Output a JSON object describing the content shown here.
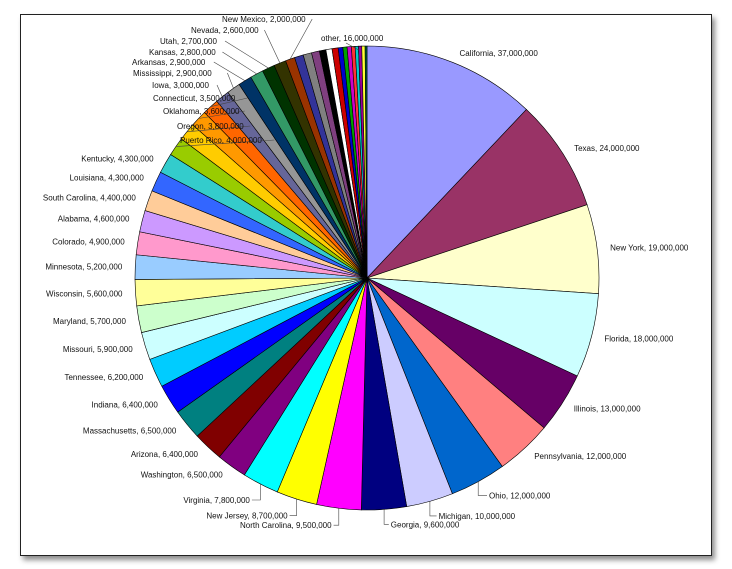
{
  "chart_data": {
    "type": "pie",
    "title": "",
    "start_angle_deg": 0,
    "direction": "clockwise",
    "slices": [
      {
        "label": "California, 37,000,000",
        "name": "California",
        "value": 37000000,
        "color": "#9999ff"
      },
      {
        "label": "Texas, 24,000,000",
        "name": "Texas",
        "value": 24000000,
        "color": "#993366"
      },
      {
        "label": "New York, 19,000,000",
        "name": "New York",
        "value": 19000000,
        "color": "#ffffcc"
      },
      {
        "label": "Florida, 18,000,000",
        "name": "Florida",
        "value": 18000000,
        "color": "#ccffff"
      },
      {
        "label": "Illinois, 13,000,000",
        "name": "Illinois",
        "value": 13000000,
        "color": "#660066"
      },
      {
        "label": "Pennsylvania, 12,000,000",
        "name": "Pennsylvania",
        "value": 12000000,
        "color": "#ff8080"
      },
      {
        "label": "Ohio, 12,000,000",
        "name": "Ohio",
        "value": 12000000,
        "color": "#0066cc"
      },
      {
        "label": "Michigan, 10,000,000",
        "name": "Michigan",
        "value": 10000000,
        "color": "#ccccff"
      },
      {
        "label": "Georgia, 9,600,000",
        "name": "Georgia",
        "value": 9600000,
        "color": "#000080"
      },
      {
        "label": "North Carolina, 9,500,000",
        "name": "North Carolina",
        "value": 9500000,
        "color": "#ff00ff"
      },
      {
        "label": "New Jersey, 8,700,000",
        "name": "New Jersey",
        "value": 8700000,
        "color": "#ffff00"
      },
      {
        "label": "Virginia, 7,800,000",
        "name": "Virginia",
        "value": 7800000,
        "color": "#00ffff"
      },
      {
        "label": "Washington, 6,500,000",
        "name": "Washington",
        "value": 6500000,
        "color": "#800080"
      },
      {
        "label": "Arizona, 6,400,000",
        "name": "Arizona",
        "value": 6400000,
        "color": "#800000"
      },
      {
        "label": "Massachusetts, 6,500,000",
        "name": "Massachusetts",
        "value": 6500000,
        "color": "#008080"
      },
      {
        "label": "Indiana, 6,400,000",
        "name": "Indiana",
        "value": 6400000,
        "color": "#0000ff"
      },
      {
        "label": "Tennessee, 6,200,000",
        "name": "Tennessee",
        "value": 6200000,
        "color": "#00ccff"
      },
      {
        "label": "Missouri, 5,900,000",
        "name": "Missouri",
        "value": 5900000,
        "color": "#ccffff"
      },
      {
        "label": "Maryland, 5,700,000",
        "name": "Maryland",
        "value": 5700000,
        "color": "#ccffcc"
      },
      {
        "label": "Wisconsin, 5,600,000",
        "name": "Wisconsin",
        "value": 5600000,
        "color": "#ffff99"
      },
      {
        "label": "Minnesota, 5,200,000",
        "name": "Minnesota",
        "value": 5200000,
        "color": "#99ccff"
      },
      {
        "label": "Colorado, 4,900,000",
        "name": "Colorado",
        "value": 4900000,
        "color": "#ff99cc"
      },
      {
        "label": "Alabama, 4,600,000",
        "name": "Alabama",
        "value": 4600000,
        "color": "#cc99ff"
      },
      {
        "label": "South Carolina, 4,400,000",
        "name": "South Carolina",
        "value": 4400000,
        "color": "#ffcc99"
      },
      {
        "label": "Louisiana, 4,300,000",
        "name": "Louisiana",
        "value": 4300000,
        "color": "#3366ff"
      },
      {
        "label": "Kentucky, 4,300,000",
        "name": "Kentucky",
        "value": 4300000,
        "color": "#33cccc"
      },
      {
        "label": "Puerto Rico, 4,000,000",
        "name": "Puerto Rico",
        "value": 4000000,
        "color": "#99cc00"
      },
      {
        "label": "Oregon, 3,800,000",
        "name": "Oregon",
        "value": 3800000,
        "color": "#ffcc00"
      },
      {
        "label": "Oklahoma, 3,600,000",
        "name": "Oklahoma",
        "value": 3600000,
        "color": "#ff9900"
      },
      {
        "label": "Connecticut, 3,500,000",
        "name": "Connecticut",
        "value": 3500000,
        "color": "#ff6600"
      },
      {
        "label": "Iowa, 3,000,000",
        "name": "Iowa",
        "value": 3000000,
        "color": "#666699"
      },
      {
        "label": "Mississippi, 2,900,000",
        "name": "Mississippi",
        "value": 2900000,
        "color": "#969696"
      },
      {
        "label": "Arkansas, 2,900,000",
        "name": "Arkansas",
        "value": 2900000,
        "color": "#003366"
      },
      {
        "label": "Kansas, 2,800,000",
        "name": "Kansas",
        "value": 2800000,
        "color": "#339966"
      },
      {
        "label": "Utah, 2,700,000",
        "name": "Utah",
        "value": 2700000,
        "color": "#003300"
      },
      {
        "label": "Nevada, 2,600,000",
        "name": "Nevada",
        "value": 2600000,
        "color": "#333300"
      },
      {
        "label": "New Mexico, 2,000,000",
        "name": "New Mexico",
        "value": 2000000,
        "color": "#993300"
      },
      {
        "label": "",
        "name": "",
        "value": 1900000,
        "color": "#333399"
      },
      {
        "label": "",
        "name": "",
        "value": 1800000,
        "color": "#808080"
      },
      {
        "label": "",
        "name": "",
        "value": 1700000,
        "color": "#7f3f7f"
      },
      {
        "label": "",
        "name": "",
        "value": 1400000,
        "color": "#000000"
      },
      {
        "label": "",
        "name": "",
        "value": 1300000,
        "color": "#ffffff"
      },
      {
        "label": "",
        "name": "",
        "value": 1300000,
        "color": "#cc0000"
      },
      {
        "label": "",
        "name": "",
        "value": 1000000,
        "color": "#0000cc"
      },
      {
        "label": "",
        "name": "",
        "value": 900000,
        "color": "#00a000"
      },
      {
        "label": "",
        "name": "",
        "value": 900000,
        "color": "#cc00cc"
      },
      {
        "label": "",
        "name": "",
        "value": 800000,
        "color": "#ff3333"
      },
      {
        "label": "",
        "name": "",
        "value": 700000,
        "color": "#00cccc"
      },
      {
        "label": "",
        "name": "",
        "value": 700000,
        "color": "#990099"
      },
      {
        "label": "",
        "name": "",
        "value": 700000,
        "color": "#ffff33"
      },
      {
        "label": "other, 16,000,000",
        "name": "other",
        "value": 400000,
        "color": "#006633"
      }
    ]
  }
}
